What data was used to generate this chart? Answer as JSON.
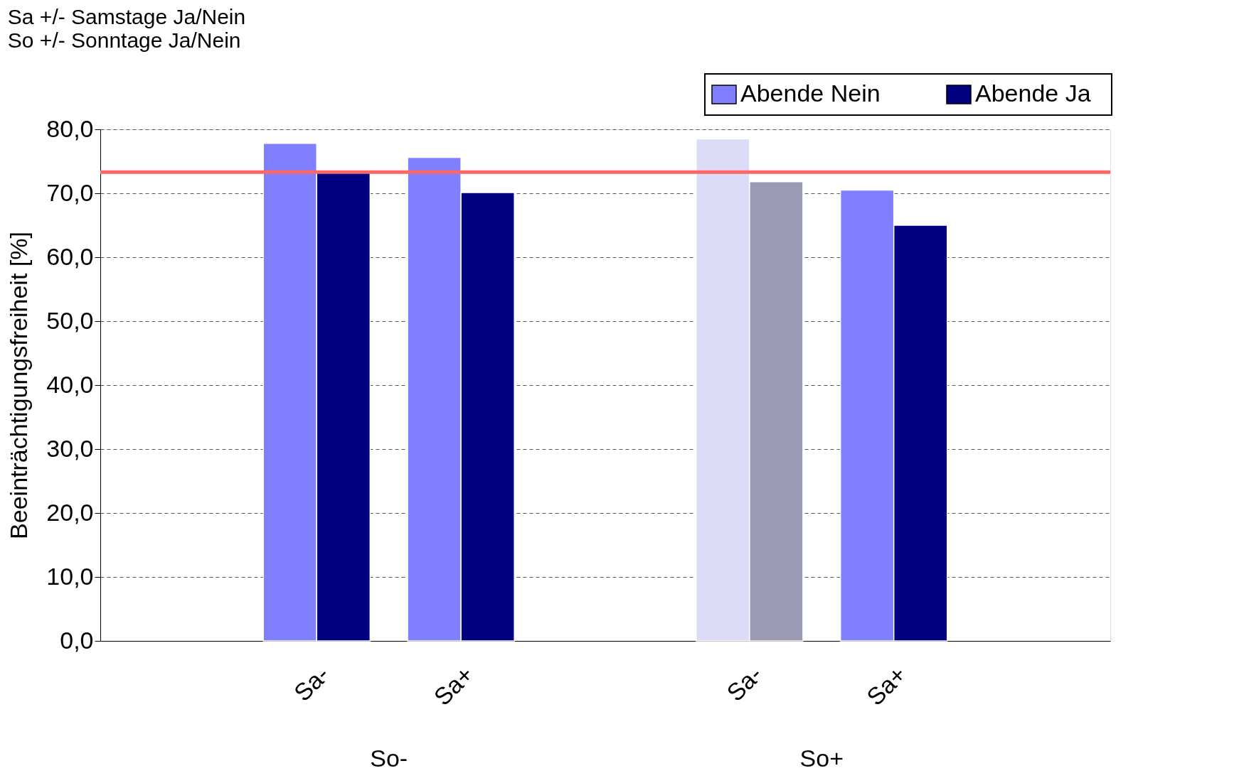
{
  "chart_data": {
    "type": "bar",
    "title": "Sa +/- Samstage Ja/Nein",
    "subtitle": "So +/- Sonntage Ja/Nein",
    "ylabel": "Beeinträchtigungsfreiheit [%]",
    "categories": [
      null,
      "Sa-",
      "Sa+",
      null,
      "Sa-",
      "Sa+",
      null
    ],
    "series": [
      {
        "name": "Abende Nein",
        "color": "#8080ff",
        "colors": [
          "#8080ff",
          "#8080ff",
          "#8080ff",
          "#8080ff",
          "#dcdcf8",
          "#8080ff",
          "#8080ff"
        ],
        "values": [
          null,
          77.8,
          75.6,
          null,
          78.5,
          70.5,
          null
        ]
      },
      {
        "name": "Abende Ja",
        "color": "#000080",
        "colors": [
          "#000080",
          "#000080",
          "#000080",
          "#000080",
          "#9a9ab4",
          "#000080",
          "#000080"
        ],
        "values": [
          null,
          73.2,
          70.1,
          null,
          71.8,
          65.0,
          null
        ]
      }
    ],
    "annotations": [
      "So-",
      "So+"
    ],
    "ylim": [
      0,
      80
    ],
    "yticks": [
      {
        "value": 0,
        "label": "0,0"
      },
      {
        "value": 10,
        "label": "10,0"
      },
      {
        "value": 20,
        "label": "20,0"
      },
      {
        "value": 30,
        "label": "30,0"
      },
      {
        "value": 40,
        "label": "40,0"
      },
      {
        "value": 50,
        "label": "50,0"
      },
      {
        "value": 60,
        "label": "60,0"
      },
      {
        "value": 70,
        "label": "70,0"
      },
      {
        "value": 80,
        "label": "80,0"
      }
    ],
    "ref_lines": [
      {
        "axis": "y",
        "value": 73.3,
        "color": "#ff6666"
      }
    ],
    "grid": "y",
    "legend": "top right"
  }
}
